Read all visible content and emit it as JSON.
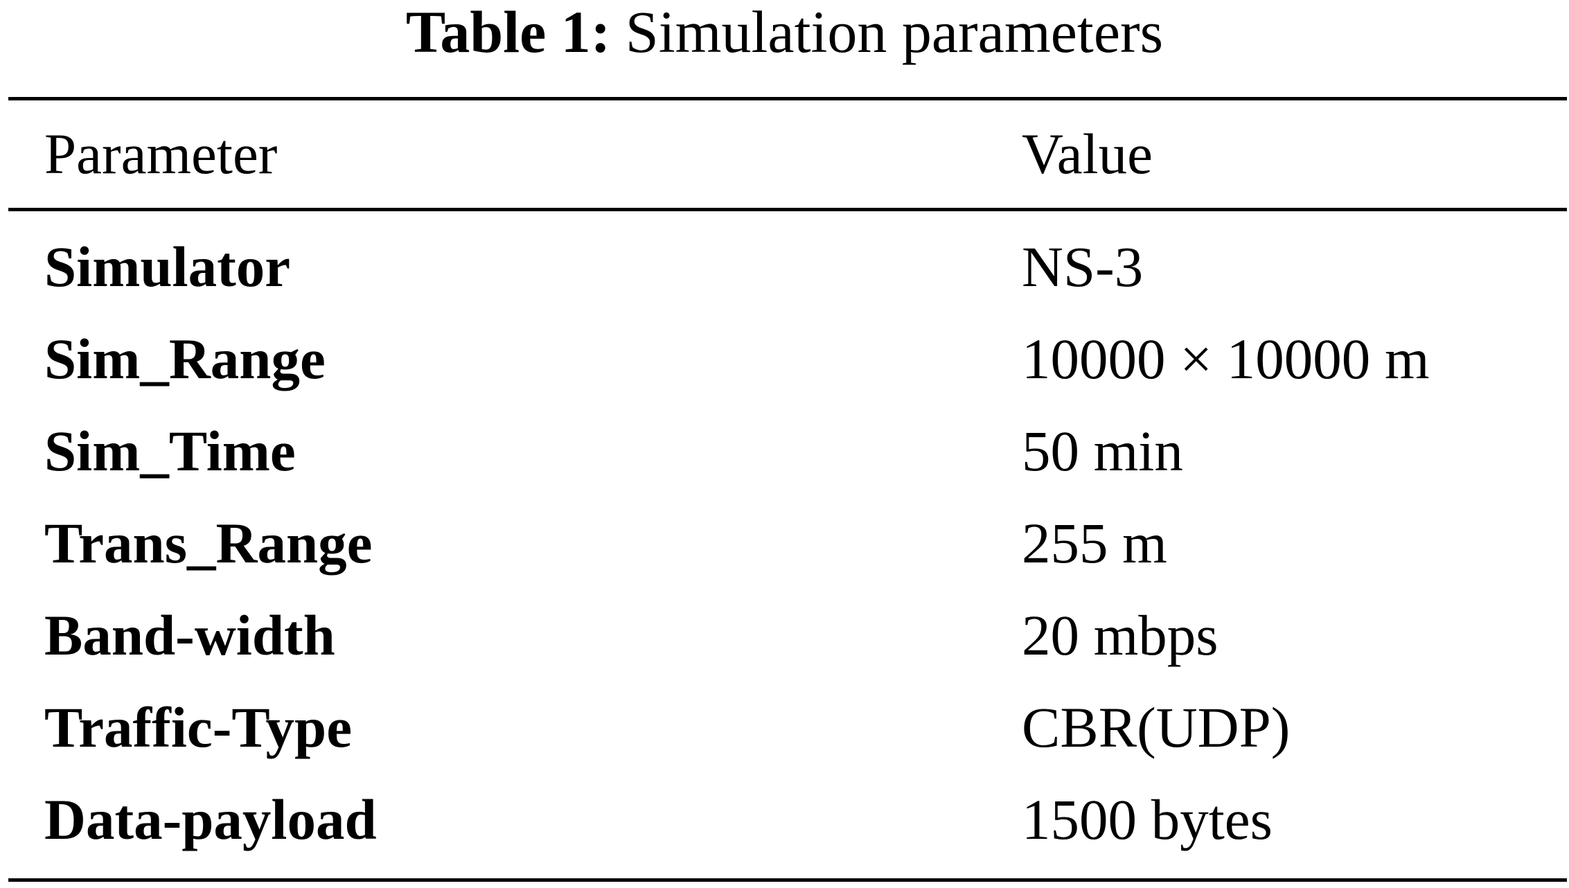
{
  "caption": {
    "label": "Table 1:",
    "text": "Simulation parameters"
  },
  "table": {
    "headers": {
      "parameter": "Parameter",
      "value": "Value"
    },
    "rows": [
      {
        "parameter": "Simulator",
        "value": "NS-3"
      },
      {
        "parameter": "Sim_Range",
        "value": "10000 × 10000 m"
      },
      {
        "parameter": "Sim_Time",
        "value": "50 min"
      },
      {
        "parameter": "Trans_Range",
        "value": "255 m"
      },
      {
        "parameter": "Band-width",
        "value": "20 mbps"
      },
      {
        "parameter": "Traffic-Type",
        "value": "CBR(UDP)"
      },
      {
        "parameter": "Data-payload",
        "value": "1500 bytes"
      }
    ]
  }
}
